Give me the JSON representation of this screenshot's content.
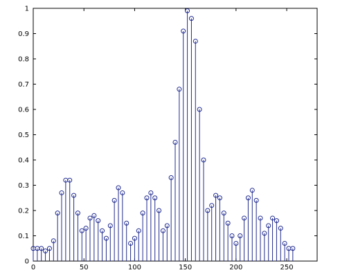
{
  "chart_data": {
    "type": "stem",
    "title": "",
    "xlabel": "",
    "ylabel": "",
    "xlim": [
      0,
      280
    ],
    "ylim": [
      0,
      1
    ],
    "grid": false,
    "legend": "none",
    "x_ticks": [
      0,
      50,
      100,
      150,
      200,
      250
    ],
    "y_ticks": [
      0,
      0.1,
      0.2,
      0.3,
      0.4,
      0.5,
      0.6,
      0.7,
      0.8,
      0.9,
      1
    ],
    "x_tick_labels": [
      "0",
      "50",
      "100",
      "150",
      "200",
      "250"
    ],
    "y_tick_labels": [
      "0",
      "0.1",
      "0.2",
      "0.3",
      "0.4",
      "0.5",
      "0.6",
      "0.7",
      "0.8",
      "0.9",
      "1"
    ],
    "series": [
      {
        "color": "#1f2a8f",
        "marker": "circle",
        "x": [
          0,
          4,
          8,
          12,
          16,
          20,
          24,
          28,
          32,
          36,
          40,
          44,
          48,
          52,
          56,
          60,
          64,
          68,
          72,
          76,
          80,
          84,
          88,
          92,
          96,
          100,
          104,
          108,
          112,
          116,
          120,
          124,
          128,
          132,
          136,
          140,
          144,
          148,
          152,
          156,
          160,
          164,
          168,
          172,
          176,
          180,
          184,
          188,
          192,
          196,
          200,
          204,
          208,
          212,
          216,
          220,
          224,
          228,
          232,
          236,
          240,
          244,
          248,
          252,
          256
        ],
        "values": [
          0.05,
          0.05,
          0.05,
          0.04,
          0.05,
          0.08,
          0.19,
          0.27,
          0.32,
          0.32,
          0.26,
          0.19,
          0.12,
          0.13,
          0.17,
          0.18,
          0.16,
          0.12,
          0.09,
          0.14,
          0.24,
          0.29,
          0.27,
          0.15,
          0.07,
          0.09,
          0.12,
          0.19,
          0.25,
          0.27,
          0.25,
          0.2,
          0.12,
          0.14,
          0.33,
          0.47,
          0.68,
          0.91,
          0.99,
          0.96,
          0.87,
          0.6,
          0.4,
          0.2,
          0.22,
          0.26,
          0.25,
          0.19,
          0.15,
          0.1,
          0.07,
          0.1,
          0.17,
          0.25,
          0.28,
          0.24,
          0.17,
          0.11,
          0.14,
          0.17,
          0.16,
          0.13,
          0.07,
          0.05,
          0.05
        ]
      }
    ]
  }
}
